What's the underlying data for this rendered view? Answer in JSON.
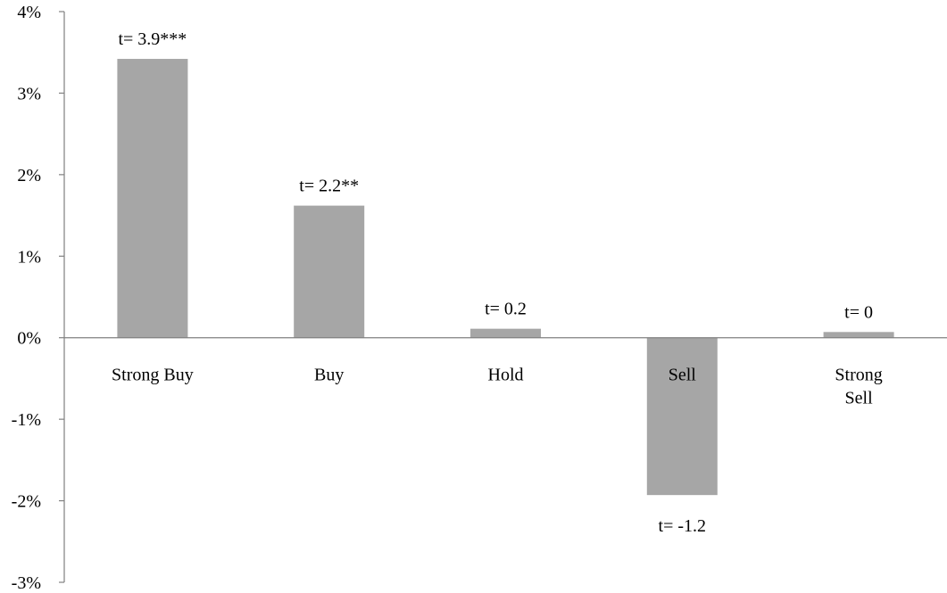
{
  "chart_data": {
    "type": "bar",
    "categories": [
      [
        "Strong Buy"
      ],
      [
        "Buy"
      ],
      [
        "Hold"
      ],
      [
        "Sell"
      ],
      [
        "Strong",
        "Sell"
      ]
    ],
    "values": [
      3.42,
      1.62,
      0.11,
      -1.93,
      0.07
    ],
    "data_labels": [
      "t= 3.9***",
      "t= 2.2**",
      "t= 0.2",
      "t= -1.2",
      "t= 0"
    ],
    "y_ticks": [
      {
        "value": 4,
        "label": "4%"
      },
      {
        "value": 3,
        "label": "3%"
      },
      {
        "value": 2,
        "label": "2%"
      },
      {
        "value": 1,
        "label": "1%"
      },
      {
        "value": 0,
        "label": "0%"
      },
      {
        "value": -1,
        "label": "-1%"
      },
      {
        "value": -2,
        "label": "-2%"
      },
      {
        "value": -3,
        "label": "-3%"
      }
    ],
    "ylim": [
      -3,
      4
    ],
    "title": "",
    "xlabel": "",
    "ylabel": "",
    "grid": false,
    "bar_color": "#a6a6a6",
    "axis_color": "#808080"
  }
}
